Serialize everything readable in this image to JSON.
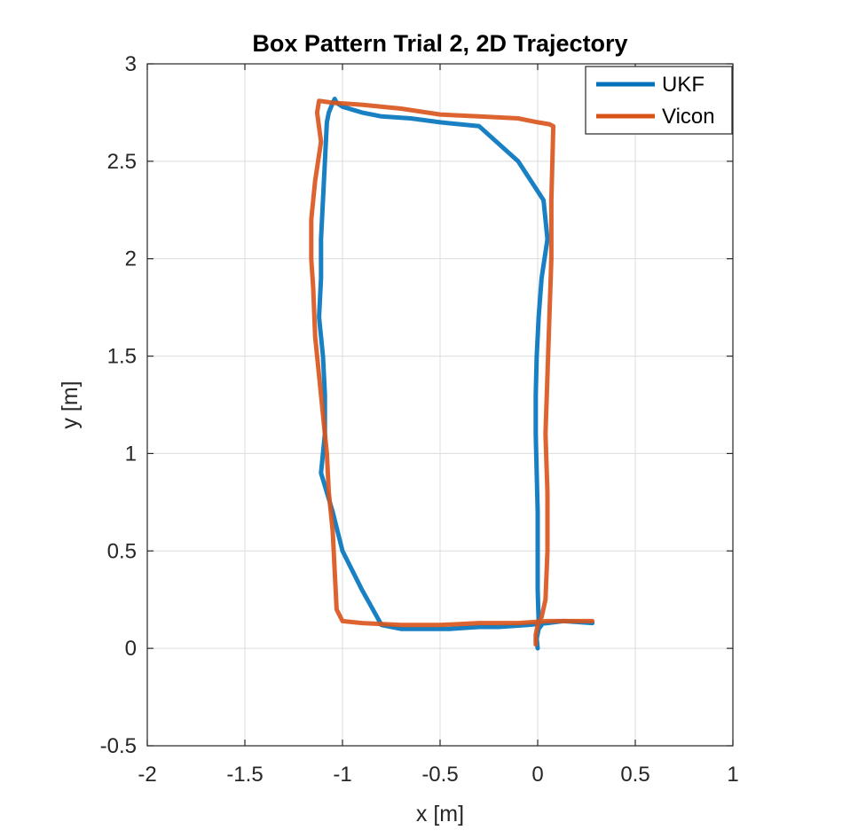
{
  "chart_data": {
    "type": "line",
    "title": "Box Pattern Trial 2, 2D Trajectory",
    "xlabel": "x [m]",
    "ylabel": "y [m]",
    "xlim": [
      -2,
      1
    ],
    "ylim": [
      -0.5,
      3
    ],
    "xticks": [
      -2,
      -1.5,
      -1,
      -0.5,
      0,
      0.5,
      1
    ],
    "yticks": [
      -0.5,
      0,
      0.5,
      1,
      1.5,
      2,
      2.5,
      3
    ],
    "xtick_labels": [
      "-2",
      "-1.5",
      "-1",
      "-0.5",
      "0",
      "0.5",
      "1"
    ],
    "ytick_labels": [
      "-0.5",
      "0",
      "0.5",
      "1",
      "1.5",
      "2",
      "2.5",
      "3"
    ],
    "grid": true,
    "legend_position": "top-right",
    "series": [
      {
        "name": "UKF",
        "color": "#0072BD",
        "x": [
          0.0,
          -0.005,
          0.005,
          0.02,
          0.005,
          0.0,
          0.0,
          0.0,
          -0.005,
          -0.01,
          -0.01,
          -0.005,
          0.005,
          0.02,
          0.05,
          0.03,
          -0.1,
          -0.3,
          -0.5,
          -0.65,
          -0.8,
          -0.9,
          -1.0,
          -1.03,
          -1.04,
          -1.05,
          -1.07,
          -1.08,
          -1.09,
          -1.1,
          -1.11,
          -1.11,
          -1.12,
          -1.1,
          -1.09,
          -1.09,
          -1.11,
          -1.05,
          -1.0,
          -0.9,
          -0.8,
          -0.7,
          -0.55,
          -0.45,
          -0.3,
          -0.2,
          -0.05,
          0.05,
          0.13,
          0.28
        ],
        "y": [
          0.0,
          0.05,
          0.1,
          0.12,
          0.14,
          0.3,
          0.5,
          0.7,
          0.9,
          1.1,
          1.3,
          1.5,
          1.7,
          1.9,
          2.1,
          2.3,
          2.5,
          2.68,
          2.7,
          2.72,
          2.73,
          2.75,
          2.78,
          2.8,
          2.82,
          2.8,
          2.75,
          2.7,
          2.5,
          2.3,
          2.1,
          1.9,
          1.7,
          1.5,
          1.3,
          1.1,
          0.9,
          0.7,
          0.5,
          0.3,
          0.12,
          0.1,
          0.1,
          0.1,
          0.11,
          0.11,
          0.12,
          0.13,
          0.14,
          0.13
        ]
      },
      {
        "name": "Vicon",
        "color": "#D95319",
        "x": [
          -0.01,
          -0.01,
          0.0,
          0.02,
          0.04,
          0.05,
          0.05,
          0.04,
          0.05,
          0.06,
          0.07,
          0.07,
          0.08,
          0.06,
          0.0,
          -0.1,
          -0.3,
          -0.5,
          -0.7,
          -0.9,
          -1.05,
          -1.12,
          -1.13,
          -1.11,
          -1.14,
          -1.16,
          -1.16,
          -1.15,
          -1.14,
          -1.12,
          -1.1,
          -1.08,
          -1.07,
          -1.05,
          -1.04,
          -1.03,
          -1.0,
          -0.9,
          -0.7,
          -0.5,
          -0.3,
          -0.1,
          0.05,
          0.28
        ],
        "y": [
          0.02,
          0.07,
          0.12,
          0.16,
          0.25,
          0.5,
          0.8,
          1.1,
          1.4,
          1.7,
          2.0,
          2.3,
          2.68,
          2.69,
          2.7,
          2.72,
          2.73,
          2.74,
          2.77,
          2.79,
          2.8,
          2.81,
          2.75,
          2.6,
          2.4,
          2.2,
          2.0,
          1.85,
          1.6,
          1.4,
          1.2,
          1.0,
          0.8,
          0.6,
          0.4,
          0.2,
          0.14,
          0.13,
          0.12,
          0.12,
          0.13,
          0.13,
          0.14,
          0.14
        ]
      }
    ]
  }
}
